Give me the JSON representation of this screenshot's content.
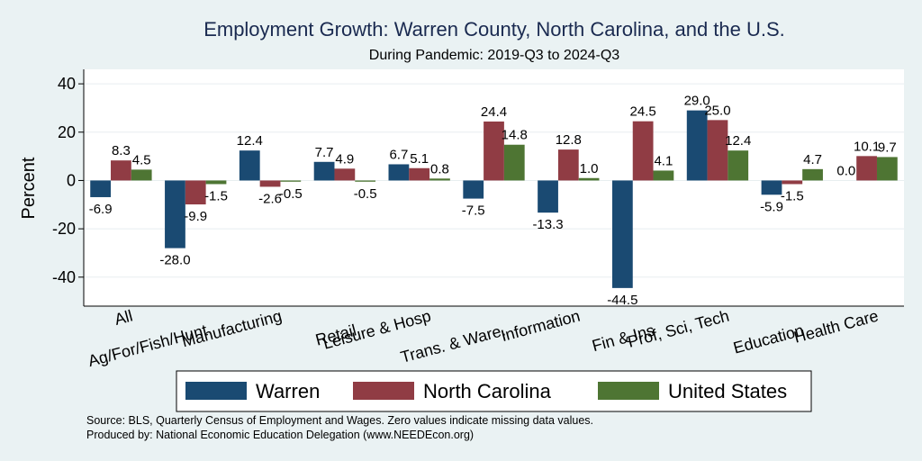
{
  "chart_data": {
    "type": "bar",
    "title": "Employment Growth: Warren County, North Carolina, and the U.S.",
    "subtitle": "During Pandemic: 2019-Q3 to 2024-Q3",
    "xlabel": "",
    "ylabel": "Percent",
    "ylim": [
      -52,
      46
    ],
    "yticks": [
      -40,
      -20,
      0,
      20,
      40
    ],
    "grid": true,
    "legend_position": "bottom",
    "categories": [
      "All",
      "Ag/For/Fish/Hunt",
      "Manufacturing",
      "Retail",
      "Leisure & Hosp",
      "Trans. & Ware.",
      "Information",
      "Fin & Ins",
      "Prof, Sci, Tech",
      "Education",
      "Health Care"
    ],
    "series": [
      {
        "name": "Warren",
        "color": "#1a4a72",
        "values": [
          -6.9,
          -28.0,
          12.4,
          7.7,
          6.7,
          -7.5,
          -13.3,
          -44.5,
          29.0,
          -5.9,
          0.0
        ]
      },
      {
        "name": "North Carolina",
        "color": "#903c44",
        "values": [
          8.3,
          -9.9,
          -2.6,
          4.9,
          5.1,
          24.4,
          12.8,
          24.5,
          25.0,
          -1.5,
          10.1
        ]
      },
      {
        "name": "United States",
        "color": "#4e7533",
        "values": [
          4.5,
          -1.5,
          -0.5,
          -0.5,
          0.8,
          14.8,
          1.0,
          4.1,
          12.4,
          4.7,
          9.7
        ]
      }
    ],
    "notes": [
      "Source: BLS, Quarterly Census of Employment and Wages. Zero values indicate missing data values.",
      "Produced by: National Economic Education Delegation (www.NEEDEcon.org)"
    ]
  }
}
